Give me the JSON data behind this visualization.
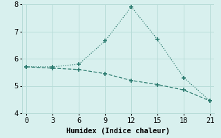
{
  "line1_x": [
    0,
    3,
    6,
    9,
    12,
    15,
    18,
    21
  ],
  "line1_y": [
    5.7,
    5.7,
    5.8,
    6.65,
    7.9,
    6.7,
    5.3,
    4.45
  ],
  "line2_x": [
    0,
    3,
    6,
    9,
    12,
    15,
    18,
    21
  ],
  "line2_y": [
    5.7,
    5.65,
    5.6,
    5.45,
    5.2,
    5.05,
    4.85,
    4.45
  ],
  "color": "#2a7a6e",
  "background_color": "#d8f0ee",
  "grid_color": "#b8dcd8",
  "xlabel": "Humidex (Indice chaleur)",
  "xlim": [
    -0.5,
    21.5
  ],
  "ylim": [
    4,
    8
  ],
  "xticks": [
    0,
    3,
    6,
    9,
    12,
    15,
    18,
    21
  ],
  "yticks": [
    4,
    5,
    6,
    7,
    8
  ],
  "label_fontsize": 7.5,
  "tick_fontsize": 7.5
}
